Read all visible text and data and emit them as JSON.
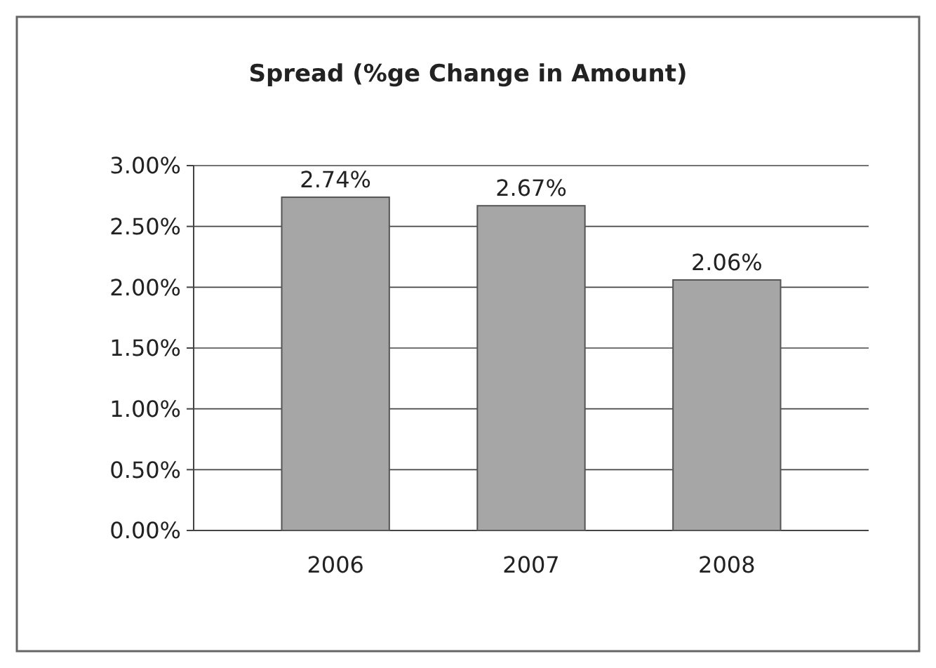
{
  "chart_data": {
    "type": "bar",
    "title": "Spread (%ge Change in Amount)",
    "categories": [
      "2006",
      "2007",
      "2008"
    ],
    "values": [
      2.74,
      2.67,
      2.06
    ],
    "value_labels": [
      "2.74%",
      "2.67%",
      "2.06%"
    ],
    "color": "#a6a6a6",
    "ylim": [
      0,
      3
    ],
    "yticks": [
      {
        "value": 0,
        "label": "0.00%"
      },
      {
        "value": 0.5,
        "label": "0.50%"
      },
      {
        "value": 1,
        "label": "1.00%"
      },
      {
        "value": 1.5,
        "label": "1.50%"
      },
      {
        "value": 2,
        "label": "2.00%"
      },
      {
        "value": 2.5,
        "label": "2.50%"
      },
      {
        "value": 3,
        "label": "3.00%"
      }
    ],
    "grid": "y"
  }
}
